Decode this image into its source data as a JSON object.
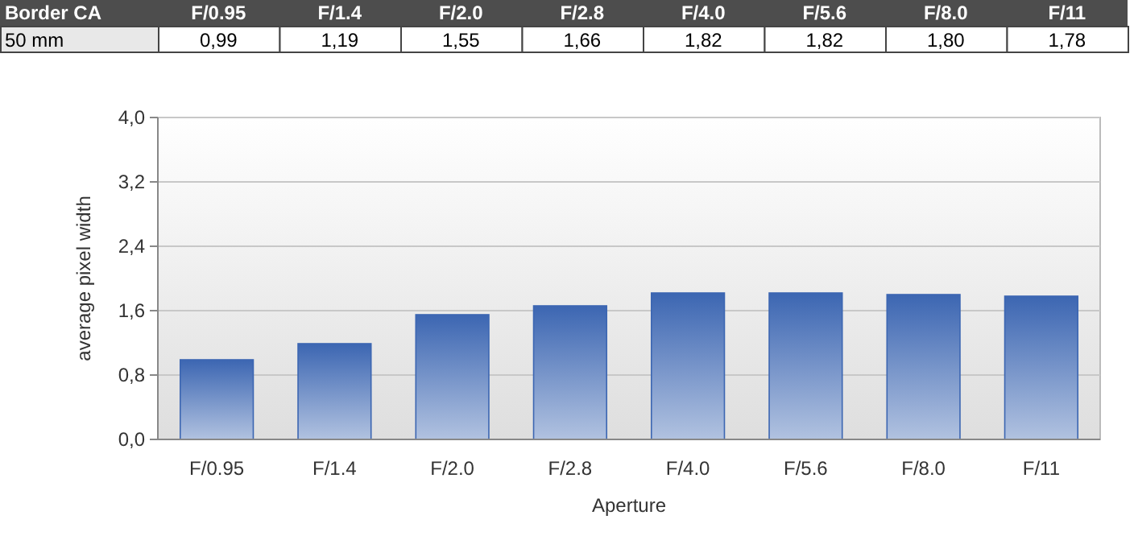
{
  "chart_data": {
    "type": "bar",
    "title": "Border CA",
    "annotations": [
      "50 mm"
    ],
    "xlabel": "Aperture",
    "ylabel": "average pixel width",
    "categories": [
      "F/0.95",
      "F/1.4",
      "F/2.0",
      "F/2.8",
      "F/4.0",
      "F/5.6",
      "F/8.0",
      "F/11"
    ],
    "values": [
      0.99,
      1.19,
      1.55,
      1.66,
      1.82,
      1.82,
      1.8,
      1.78
    ],
    "value_labels": [
      "0,99",
      "1,19",
      "1,55",
      "1,66",
      "1,82",
      "1,82",
      "1,80",
      "1,78"
    ],
    "color": "#3c66b2",
    "ylim": [
      0,
      4
    ],
    "yticks": [
      {
        "value": 0,
        "label": "0,0"
      },
      {
        "value": 0.8,
        "label": "0,8"
      },
      {
        "value": 1.6,
        "label": "1,6"
      },
      {
        "value": 2.4,
        "label": "2,4"
      },
      {
        "value": 3.2,
        "label": "3,2"
      },
      {
        "value": 4,
        "label": "4,0"
      }
    ],
    "grid": "y"
  }
}
